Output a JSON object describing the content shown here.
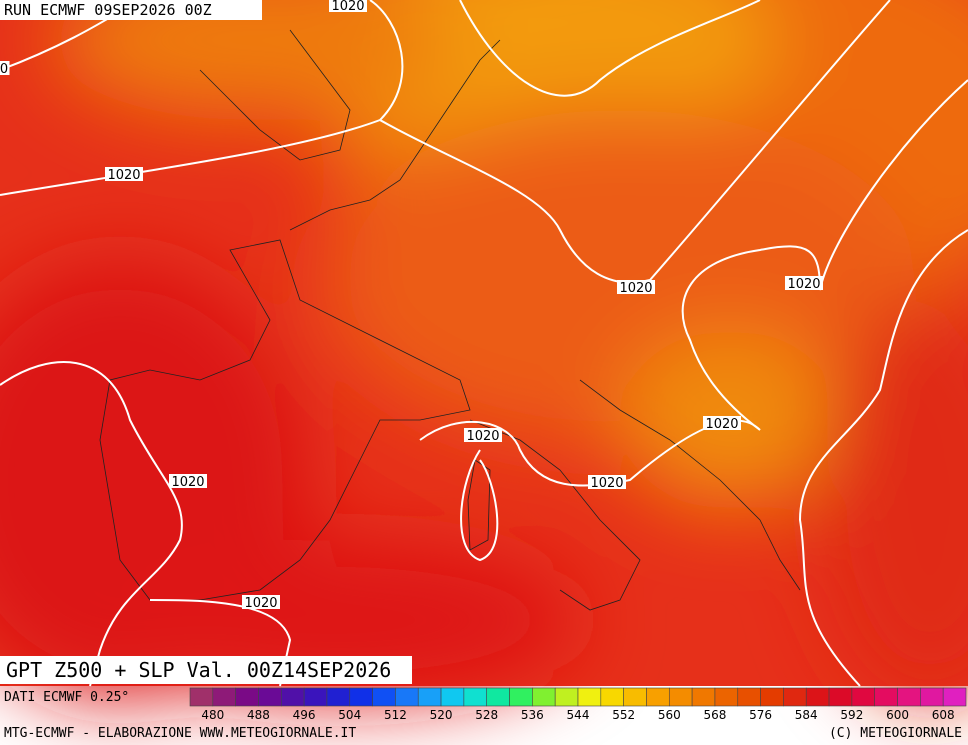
{
  "header": {
    "run": "RUN ECMWF 09SEP2026 00Z"
  },
  "isobar_labels": [
    {
      "text": "1020"
    },
    {
      "text": "0"
    },
    {
      "text": "1020"
    },
    {
      "text": "1020"
    },
    {
      "text": "1020"
    },
    {
      "text": "1020"
    },
    {
      "text": "1020"
    },
    {
      "text": "1020"
    },
    {
      "text": "1020"
    },
    {
      "text": "1020"
    }
  ],
  "title": "GPT Z500 + SLP Val. 00Z14SEP2026",
  "source": "DATI ECMWF 0.25°",
  "colorbar": {
    "labels": [
      480,
      488,
      496,
      504,
      512,
      520,
      528,
      536,
      544,
      552,
      560,
      568,
      576,
      584,
      592,
      600,
      608
    ],
    "colors": [
      "#a0306a",
      "#8e1a78",
      "#7a0a86",
      "#6a0a96",
      "#5010a8",
      "#3a14bc",
      "#2020d2",
      "#1030e8",
      "#1050f4",
      "#1878f8",
      "#18a0f8",
      "#10c8f0",
      "#10e0d0",
      "#10e8a0",
      "#30f060",
      "#80f030",
      "#c0f020",
      "#f0f010",
      "#f8d800",
      "#f8bc00",
      "#f8a000",
      "#f48c00",
      "#f07800",
      "#ec6400",
      "#e85000",
      "#e43c00",
      "#e02810",
      "#dc1418",
      "#dc0a28",
      "#e00840",
      "#e40c60",
      "#e41480",
      "#e018a0",
      "#e020c0"
    ]
  },
  "footer": {
    "left": "MTG-ECMWF - ELABORAZIONE WWW.METEOGIORNALE.IT",
    "right": "(C) METEOGIORNALE"
  }
}
